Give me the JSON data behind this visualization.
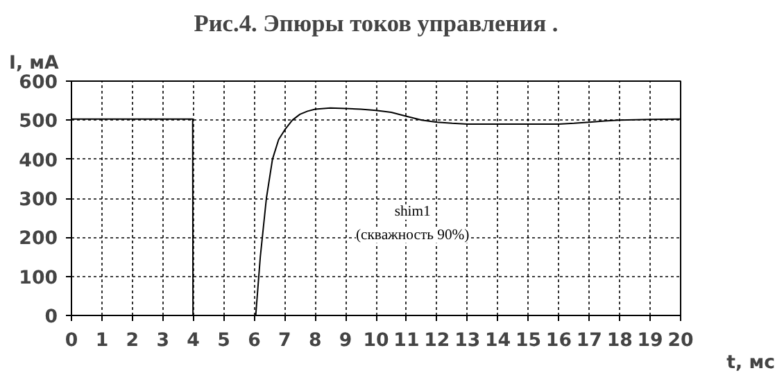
{
  "chart_data": {
    "type": "line",
    "title": "Рис.4. Эпюры токов управления .",
    "xlabel": "t, мс",
    "ylabel": "I, мА",
    "series": [
      {
        "color": "#000000",
        "x": [
          0,
          1,
          2,
          3,
          3.98,
          3.99,
          4,
          5,
          6.05,
          6.2,
          6.4,
          6.6,
          6.8,
          7,
          7.25,
          7.5,
          7.75,
          8,
          8.5,
          9,
          9.5,
          10,
          10.5,
          11,
          11.5,
          12,
          12.5,
          13,
          14,
          15,
          16,
          16.5,
          17,
          17.5,
          18,
          19,
          20
        ],
        "values": [
          503,
          503,
          503,
          503,
          503,
          0,
          0,
          0,
          0,
          150,
          300,
          400,
          450,
          475,
          500,
          515,
          523,
          528,
          531,
          530,
          528,
          525,
          520,
          510,
          500,
          495,
          492,
          490,
          490,
          490,
          490,
          492,
          495,
          498,
          500,
          502,
          503
        ]
      }
    ],
    "annotations": [
      "shim1",
      "(скважность 90%)"
    ],
    "xlim": [
      0,
      20
    ],
    "ylim": [
      0,
      600
    ],
    "xticks": [
      0,
      1,
      2,
      3,
      4,
      5,
      6,
      7,
      8,
      9,
      10,
      11,
      12,
      13,
      14,
      15,
      16,
      17,
      18,
      19,
      20
    ],
    "yticks": [
      0,
      100,
      200,
      300,
      400,
      500,
      600
    ],
    "grid": true,
    "line_style": "solid"
  }
}
